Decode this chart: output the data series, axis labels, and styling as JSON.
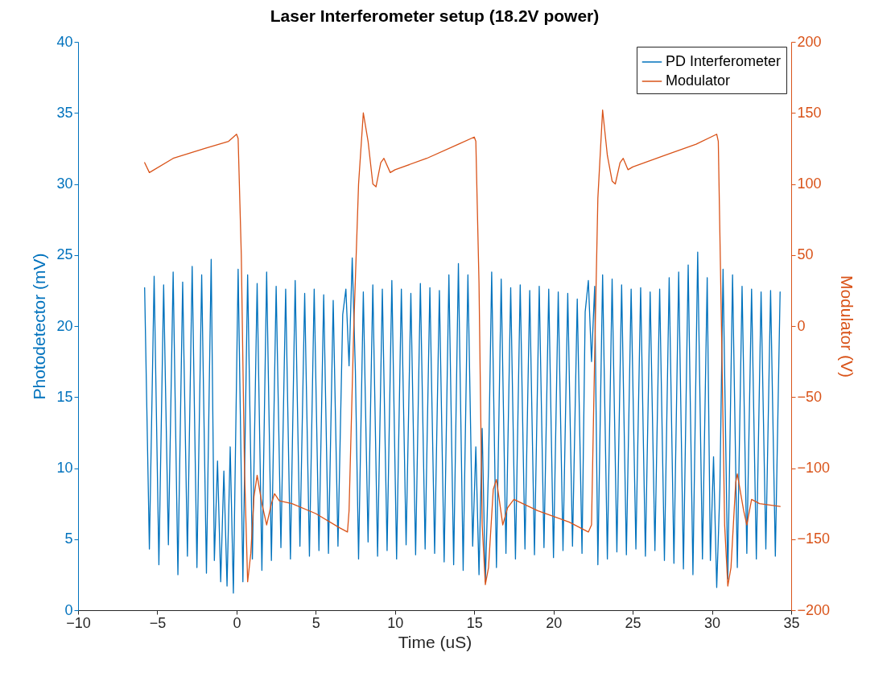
{
  "chart_data": {
    "type": "line",
    "title": "Laser Interferometer setup (18.2V power)",
    "xlabel": "Time (uS)",
    "ylabel": "Photodetector (mV)",
    "y2label": "Modulator (V)",
    "xlim": [
      -10,
      35
    ],
    "xticks": [
      -10,
      -5,
      0,
      5,
      10,
      15,
      20,
      25,
      30,
      35
    ],
    "ylim": [
      0,
      40
    ],
    "yticks": [
      0,
      5,
      10,
      15,
      20,
      25,
      30,
      35,
      40
    ],
    "y2lim": [
      -200,
      200
    ],
    "y2ticks": [
      -200,
      -150,
      -100,
      -50,
      0,
      50,
      100,
      150,
      200
    ],
    "grid": false,
    "legend": "top right",
    "marker": "none",
    "line_style": "solid",
    "series": [
      {
        "name": "PD Interferometer",
        "color": "#0072bd",
        "x": [
          -5.8,
          -5.5,
          -5.2,
          -4.9,
          -4.6,
          -4.3,
          -4.0,
          -3.7,
          -3.4,
          -3.1,
          -2.8,
          -2.5,
          -2.2,
          -1.9,
          -1.6,
          -1.4,
          -1.2,
          -1.0,
          -0.8,
          -0.6,
          -0.4,
          -0.2,
          0.1,
          0.4,
          0.7,
          1.0,
          1.3,
          1.6,
          1.9,
          2.2,
          2.5,
          2.8,
          3.1,
          3.4,
          3.7,
          4.0,
          4.3,
          4.6,
          4.9,
          5.2,
          5.5,
          5.8,
          6.1,
          6.4,
          6.7,
          6.9,
          7.1,
          7.3,
          7.5,
          7.7,
          8.0,
          8.3,
          8.6,
          8.9,
          9.2,
          9.5,
          9.8,
          10.1,
          10.4,
          10.7,
          11.0,
          11.3,
          11.6,
          11.9,
          12.2,
          12.5,
          12.8,
          13.1,
          13.4,
          13.7,
          14.0,
          14.3,
          14.6,
          14.9,
          15.1,
          15.3,
          15.5,
          15.7,
          15.9,
          16.1,
          16.4,
          16.7,
          17.0,
          17.3,
          17.6,
          17.9,
          18.2,
          18.5,
          18.8,
          19.1,
          19.4,
          19.7,
          20.0,
          20.3,
          20.6,
          20.9,
          21.2,
          21.5,
          21.8,
          22.0,
          22.2,
          22.4,
          22.6,
          22.8,
          23.1,
          23.4,
          23.7,
          24.0,
          24.3,
          24.6,
          24.9,
          25.2,
          25.5,
          25.8,
          26.1,
          26.4,
          26.7,
          27.0,
          27.3,
          27.6,
          27.9,
          28.2,
          28.5,
          28.8,
          29.1,
          29.4,
          29.7,
          29.9,
          30.1,
          30.3,
          30.5,
          30.7,
          31.0,
          31.3,
          31.6,
          31.9,
          32.2,
          32.5,
          32.8,
          33.1,
          33.4,
          33.7,
          34.0,
          34.3
        ],
        "values": [
          22.7,
          4.3,
          23.5,
          3.2,
          22.9,
          4.6,
          23.8,
          2.5,
          23.1,
          3.8,
          24.2,
          3.0,
          23.6,
          2.6,
          24.7,
          3.5,
          10.5,
          2.0,
          9.8,
          1.7,
          11.5,
          1.2,
          24.0,
          2.0,
          23.6,
          3.6,
          23.0,
          2.8,
          23.8,
          3.5,
          22.8,
          4.4,
          22.6,
          3.6,
          23.2,
          4.5,
          22.3,
          3.8,
          22.6,
          4.2,
          22.2,
          4.0,
          21.8,
          4.5,
          20.8,
          22.6,
          17.2,
          24.8,
          16.8,
          3.6,
          22.4,
          4.8,
          22.9,
          3.8,
          22.6,
          4.2,
          23.2,
          3.6,
          22.6,
          4.6,
          22.3,
          3.9,
          23.0,
          4.3,
          22.7,
          4.0,
          22.5,
          3.4,
          23.6,
          3.2,
          24.4,
          2.8,
          23.6,
          4.5,
          11.5,
          2.5,
          12.8,
          2.0,
          10.0,
          23.8,
          3.0,
          23.3,
          4.0,
          22.7,
          3.6,
          22.9,
          4.3,
          22.5,
          3.9,
          22.8,
          4.4,
          22.6,
          3.7,
          22.4,
          4.2,
          22.3,
          4.5,
          21.9,
          4.0,
          21.0,
          23.2,
          17.5,
          22.8,
          3.2,
          23.6,
          3.6,
          23.3,
          4.1,
          22.9,
          3.9,
          22.6,
          4.3,
          22.7,
          3.8,
          22.4,
          4.2,
          22.6,
          3.5,
          23.4,
          3.3,
          23.8,
          2.9,
          24.3,
          2.5,
          25.2,
          3.6,
          23.4,
          3.5,
          10.8,
          1.6,
          8.5,
          24.0,
          2.2,
          23.6,
          3.0,
          22.8,
          4.0,
          22.6,
          3.6,
          22.4,
          4.3,
          22.5,
          3.8,
          22.4
        ]
      },
      {
        "name": "Modulator",
        "color": "#d95319",
        "axis": "y2",
        "x": [
          -5.8,
          -5.5,
          -4,
          -2,
          -0.5,
          0,
          0.1,
          0.3,
          0.5,
          0.7,
          0.9,
          1.1,
          1.3,
          1.6,
          1.9,
          2.2,
          2.4,
          2.7,
          3.5,
          5,
          6.5,
          7,
          7.1,
          7.4,
          7.7,
          8,
          8.3,
          8.6,
          8.8,
          9.1,
          9.3,
          9.7,
          10,
          12,
          14,
          15,
          15.1,
          15.3,
          15.5,
          15.7,
          15.9,
          16.2,
          16.4,
          16.8,
          17.1,
          17.5,
          19,
          21,
          22.2,
          22.4,
          22.6,
          22.8,
          23.1,
          23.4,
          23.7,
          23.9,
          24.2,
          24.4,
          24.7,
          25,
          27,
          29,
          30.3,
          30.4,
          30.6,
          30.8,
          31,
          31.2,
          31.5,
          31.6,
          32,
          32.2,
          32.5,
          33,
          34.3
        ],
        "values": [
          115,
          108,
          118,
          125,
          130,
          135,
          132,
          50,
          -100,
          -180,
          -160,
          -120,
          -105,
          -125,
          -140,
          -125,
          -118,
          -123,
          -125,
          -132,
          -142,
          -145,
          -130,
          0,
          100,
          150,
          130,
          100,
          98,
          115,
          118,
          108,
          110,
          118,
          128,
          133,
          130,
          30,
          -140,
          -182,
          -170,
          -115,
          -108,
          -140,
          -128,
          -122,
          -130,
          -138,
          -145,
          -140,
          -20,
          90,
          152,
          120,
          102,
          100,
          115,
          118,
          110,
          112,
          120,
          128,
          135,
          130,
          0,
          -140,
          -183,
          -170,
          -110,
          -104,
          -130,
          -140,
          -122,
          -125,
          -127
        ]
      }
    ]
  }
}
